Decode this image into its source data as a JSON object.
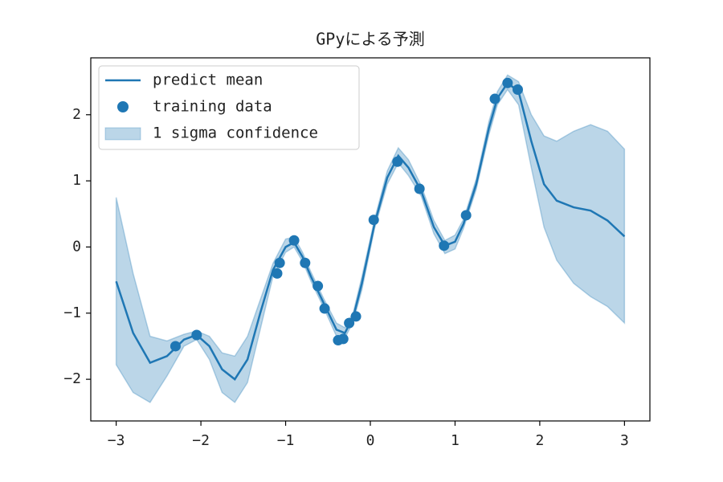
{
  "chart_data": {
    "type": "line",
    "title": "GPyによる予測",
    "xlim": [
      -3.3,
      3.3
    ],
    "ylim": [
      -2.63,
      2.86
    ],
    "xticks": [
      {
        "value": -3,
        "label": "−3"
      },
      {
        "value": -2,
        "label": "−2"
      },
      {
        "value": -1,
        "label": "−1"
      },
      0,
      1,
      2,
      3
    ],
    "yticks": [
      {
        "value": -2,
        "label": "−2"
      },
      {
        "value": -1,
        "label": "−1"
      },
      0,
      1,
      2
    ],
    "legend": "upper left",
    "x": [
      -3,
      -2.8,
      -2.6,
      -2.4,
      -2.2,
      -2.05,
      -1.9,
      -1.75,
      -1.6,
      -1.45,
      -1.3,
      -1.15,
      -1.0,
      -0.9,
      -0.8,
      -0.7,
      -0.55,
      -0.4,
      -0.3,
      -0.2,
      -0.1,
      0.05,
      0.2,
      0.33,
      0.45,
      0.6,
      0.75,
      0.88,
      1.0,
      1.1,
      1.25,
      1.4,
      1.5,
      1.62,
      1.75,
      1.9,
      2.05,
      2.2,
      2.4,
      2.6,
      2.8,
      3.0
    ],
    "series": [
      {
        "name": "predict mean",
        "kind": "line",
        "color": "#1f77b4",
        "values": [
          -0.52,
          -1.3,
          -1.75,
          -1.65,
          -1.4,
          -1.33,
          -1.5,
          -1.85,
          -2.0,
          -1.7,
          -1.0,
          -0.35,
          0.0,
          0.07,
          -0.15,
          -0.45,
          -0.85,
          -1.25,
          -1.3,
          -1.05,
          -0.55,
          0.35,
          1.05,
          1.38,
          1.2,
          0.85,
          0.3,
          0.02,
          0.08,
          0.35,
          0.95,
          1.8,
          2.25,
          2.48,
          2.35,
          1.6,
          0.95,
          0.7,
          0.6,
          0.55,
          0.4,
          0.16
        ]
      },
      {
        "name": "training data",
        "kind": "scatter",
        "color": "#1f77b4",
        "x": [
          -2.3,
          -2.05,
          -1.1,
          -1.07,
          -0.9,
          -0.77,
          -0.62,
          -0.54,
          -0.38,
          -0.32,
          -0.25,
          -0.17,
          0.04,
          0.32,
          0.58,
          0.87,
          1.13,
          1.47,
          1.62,
          1.74
        ],
        "values": [
          -1.5,
          -1.33,
          -0.4,
          -0.24,
          0.1,
          -0.24,
          -0.59,
          -0.93,
          -1.41,
          -1.39,
          -1.15,
          -1.05,
          0.41,
          1.29,
          0.88,
          0.02,
          0.48,
          2.24,
          2.48,
          2.38
        ]
      },
      {
        "name": "1 sigma confidence",
        "kind": "band",
        "color": "#1f77b4",
        "upper": [
          0.75,
          -0.4,
          -1.35,
          -1.42,
          -1.32,
          -1.27,
          -1.35,
          -1.6,
          -1.65,
          -1.35,
          -0.8,
          -0.25,
          0.12,
          0.15,
          -0.08,
          -0.38,
          -0.78,
          -1.15,
          -1.22,
          -0.98,
          -0.45,
          0.42,
          1.15,
          1.5,
          1.32,
          0.93,
          0.4,
          0.1,
          0.18,
          0.42,
          1.03,
          1.9,
          2.35,
          2.6,
          2.5,
          2.0,
          1.68,
          1.6,
          1.75,
          1.85,
          1.75,
          1.48
        ],
        "lower": [
          -1.78,
          -2.2,
          -2.35,
          -1.95,
          -1.5,
          -1.4,
          -1.7,
          -2.2,
          -2.35,
          -2.05,
          -1.25,
          -0.45,
          -0.08,
          0.0,
          -0.22,
          -0.52,
          -0.92,
          -1.35,
          -1.38,
          -1.12,
          -0.65,
          0.28,
          0.95,
          1.27,
          1.08,
          0.77,
          0.2,
          -0.1,
          -0.03,
          0.28,
          0.87,
          1.7,
          2.15,
          2.38,
          2.15,
          1.2,
          0.3,
          -0.2,
          -0.55,
          -0.75,
          -0.9,
          -1.15
        ]
      }
    ]
  }
}
